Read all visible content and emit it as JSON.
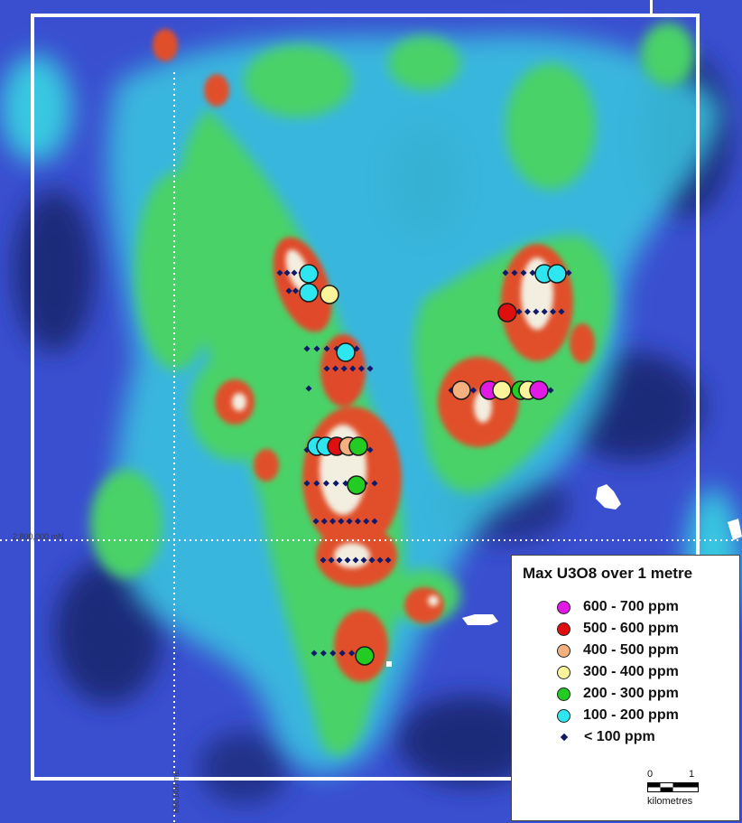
{
  "grid": {
    "northing_label": "2,800,000 mN",
    "easting_label": "680,000 mE"
  },
  "legend": {
    "title": "Max U3O8 over 1 metre",
    "classes": [
      {
        "label": "600 - 700 ppm",
        "color": "#e21ae6",
        "symbol": "circle"
      },
      {
        "label": "500 - 600 ppm",
        "color": "#e00f0f",
        "symbol": "circle"
      },
      {
        "label": "400 - 500 ppm",
        "color": "#f4b07e",
        "symbol": "circle"
      },
      {
        "label": "300 - 400 ppm",
        "color": "#fbf49a",
        "symbol": "circle"
      },
      {
        "label": "200 - 300 ppm",
        "color": "#22cc22",
        "symbol": "circle"
      },
      {
        "label": "100 - 200 ppm",
        "color": "#2ee6f0",
        "symbol": "circle"
      },
      {
        "label": "< 100 ppm",
        "color": "#101a6b",
        "symbol": "dot"
      }
    ],
    "scale": {
      "start": "0",
      "end": "1",
      "unit": "kilometres"
    }
  },
  "colors": {
    "background": "#3346c8",
    "frame": "#ffffff"
  }
}
